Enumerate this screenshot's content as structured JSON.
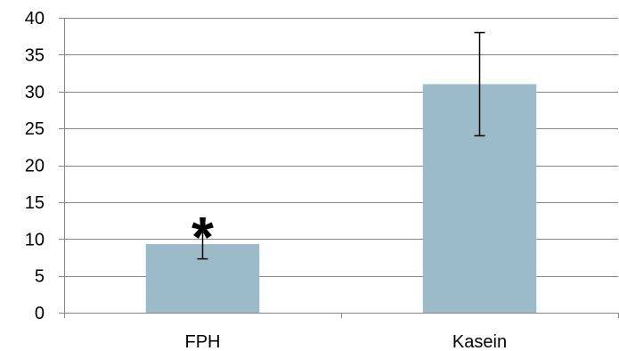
{
  "chart_data": {
    "type": "bar",
    "categories": [
      "FPH",
      "Kasein"
    ],
    "values": [
      9.3,
      31
    ],
    "error_low": [
      7.3,
      24
    ],
    "error_high": [
      11.5,
      38
    ],
    "annotations": [
      {
        "category": "FPH",
        "text": "*"
      }
    ],
    "title": "",
    "xlabel": "",
    "ylabel": "",
    "ylim": [
      0,
      40
    ],
    "yticks": [
      "0",
      "5",
      "10",
      "15",
      "20",
      "25",
      "30",
      "35",
      "40"
    ],
    "grid": true,
    "legend": "none",
    "colors": {
      "bar": "#9bbbc9",
      "grid": "#868686",
      "error_bar": "#000000"
    }
  }
}
